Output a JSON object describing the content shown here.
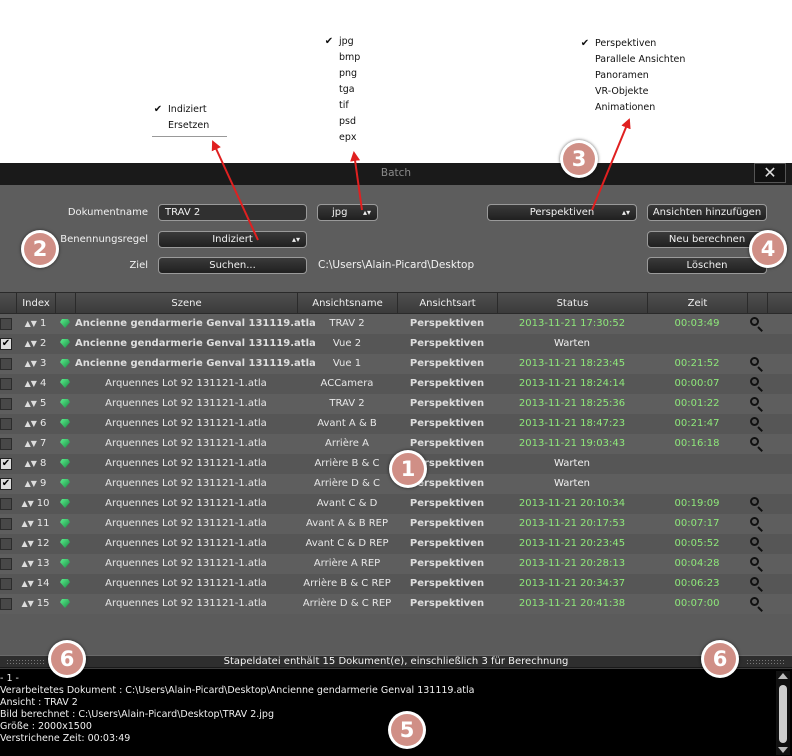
{
  "menus": {
    "naming": {
      "items": [
        {
          "label": "Indiziert",
          "checked": "✔"
        },
        {
          "label": "Ersetzen",
          "checked": ""
        }
      ]
    },
    "format": {
      "items": [
        {
          "label": "jpg",
          "checked": "✔"
        },
        {
          "label": "bmp",
          "checked": ""
        },
        {
          "label": "png",
          "checked": ""
        },
        {
          "label": "tga",
          "checked": ""
        },
        {
          "label": "tif",
          "checked": ""
        },
        {
          "label": "psd",
          "checked": ""
        },
        {
          "label": "epx",
          "checked": ""
        }
      ]
    },
    "viewtype": {
      "items": [
        {
          "label": "Perspektiven",
          "checked": "✔"
        },
        {
          "label": "Parallele Ansichten",
          "checked": ""
        },
        {
          "label": "Panoramen",
          "checked": ""
        },
        {
          "label": "VR-Objekte",
          "checked": ""
        },
        {
          "label": "Animationen",
          "checked": ""
        }
      ]
    }
  },
  "window": {
    "title": "Batch",
    "close_glyph": "✕"
  },
  "settings": {
    "doc_name_label": "Dokumentname",
    "doc_name_value": "TRAV 2",
    "format_value": "jpg",
    "naming_label": "Benennungsregel",
    "naming_value": "Indiziert",
    "target_label": "Ziel",
    "browse_button": "Suchen...",
    "target_path": "C:\\Users\\Alain-Picard\\Desktop",
    "viewtype_value": "Perspektiven",
    "add_views_button": "Ansichten hinzufügen",
    "recompute_button": "Neu berechnen",
    "delete_button": "Löschen",
    "select_arrows": "▴▾"
  },
  "table": {
    "headers": {
      "index": "Index",
      "scene": "Szene",
      "viewname": "Ansichtsname",
      "viewtype": "Ansichtsart",
      "status": "Status",
      "time": "Zeit"
    },
    "rows": [
      {
        "checked": false,
        "index": "1",
        "scene": "Ancienne gendarmerie Genval 131119.atla",
        "view": "TRAV 2",
        "type": "Perspektiven",
        "status": "2013-11-21 17:30:52",
        "time": "00:03:49",
        "done": true
      },
      {
        "checked": true,
        "index": "2",
        "scene": "Ancienne gendarmerie Genval 131119.atla",
        "view": "Vue 2",
        "type": "Perspektiven",
        "status": "Warten",
        "time": "",
        "done": false
      },
      {
        "checked": false,
        "index": "3",
        "scene": "Ancienne gendarmerie Genval 131119.atla",
        "view": "Vue 1",
        "type": "Perspektiven",
        "status": "2013-11-21 18:23:45",
        "time": "00:21:52",
        "done": true
      },
      {
        "checked": false,
        "index": "4",
        "scene": "Arquennes Lot 92 131121-1.atla",
        "view": "ACCamera",
        "type": "Perspektiven",
        "status": "2013-11-21 18:24:14",
        "time": "00:00:07",
        "done": true
      },
      {
        "checked": false,
        "index": "5",
        "scene": "Arquennes Lot 92 131121-1.atla",
        "view": "TRAV 2",
        "type": "Perspektiven",
        "status": "2013-11-21 18:25:36",
        "time": "00:01:22",
        "done": true
      },
      {
        "checked": false,
        "index": "6",
        "scene": "Arquennes Lot 92 131121-1.atla",
        "view": "Avant A & B",
        "type": "Perspektiven",
        "status": "2013-11-21 18:47:23",
        "time": "00:21:47",
        "done": true
      },
      {
        "checked": false,
        "index": "7",
        "scene": "Arquennes Lot 92 131121-1.atla",
        "view": "Arrière  A",
        "type": "Perspektiven",
        "status": "2013-11-21 19:03:43",
        "time": "00:16:18",
        "done": true
      },
      {
        "checked": true,
        "index": "8",
        "scene": "Arquennes Lot 92 131121-1.atla",
        "view": "Arrière  B & C",
        "type": "Perspektiven",
        "status": "Warten",
        "time": "",
        "done": false
      },
      {
        "checked": true,
        "index": "9",
        "scene": "Arquennes Lot 92 131121-1.atla",
        "view": "Arrière  D & C",
        "type": "Perspektiven",
        "status": "Warten",
        "time": "",
        "done": false
      },
      {
        "checked": false,
        "index": "10",
        "scene": "Arquennes Lot 92 131121-1.atla",
        "view": "Avant C & D",
        "type": "Perspektiven",
        "status": "2013-11-21 20:10:34",
        "time": "00:19:09",
        "done": true
      },
      {
        "checked": false,
        "index": "11",
        "scene": "Arquennes Lot 92 131121-1.atla",
        "view": "Avant A & B REP",
        "type": "Perspektiven",
        "status": "2013-11-21 20:17:53",
        "time": "00:07:17",
        "done": true
      },
      {
        "checked": false,
        "index": "12",
        "scene": "Arquennes Lot 92 131121-1.atla",
        "view": "Avant C & D REP",
        "type": "Perspektiven",
        "status": "2013-11-21 20:23:45",
        "time": "00:05:52",
        "done": true
      },
      {
        "checked": false,
        "index": "13",
        "scene": "Arquennes Lot 92 131121-1.atla",
        "view": "Arrière  A REP",
        "type": "Perspektiven",
        "status": "2013-11-21 20:28:13",
        "time": "00:04:28",
        "done": true
      },
      {
        "checked": false,
        "index": "14",
        "scene": "Arquennes Lot 92 131121-1.atla",
        "view": "Arrière  B & C REP",
        "type": "Perspektiven",
        "status": "2013-11-21 20:34:37",
        "time": "00:06:23",
        "done": true
      },
      {
        "checked": false,
        "index": "15",
        "scene": "Arquennes Lot 92 131121-1.atla",
        "view": "Arrière  D & C REP",
        "type": "Perspektiven",
        "status": "2013-11-21 20:41:38",
        "time": "00:07:00",
        "done": true
      }
    ]
  },
  "summary": "Stapeldatei enthält 15 Dokument(e), einschließlich 3 für Berechnung",
  "log": [
    "- 1 -",
    "Verarbeitetes Dokument : C:\\Users\\Alain-Picard\\Desktop\\Ancienne gendarmerie Genval 131119.atla",
    "Ansicht : TRAV 2",
    "Bild berechnet : C:\\Users\\Alain-Picard\\Desktop\\TRAV 2.jpg",
    "Größe : 2000x1500",
    "Verstrichene Zeit: 00:03:49"
  ],
  "annotations": [
    "1",
    "2",
    "3",
    "4",
    "5",
    "6",
    "6"
  ],
  "colors": {
    "annotation": "#d08f86",
    "arrow": "#e02020",
    "done_text": "#8ee87a"
  },
  "icons": {
    "row_handle": "up-down-arrows-icon",
    "scene": "gem-icon",
    "preview": "magnifier-icon"
  }
}
